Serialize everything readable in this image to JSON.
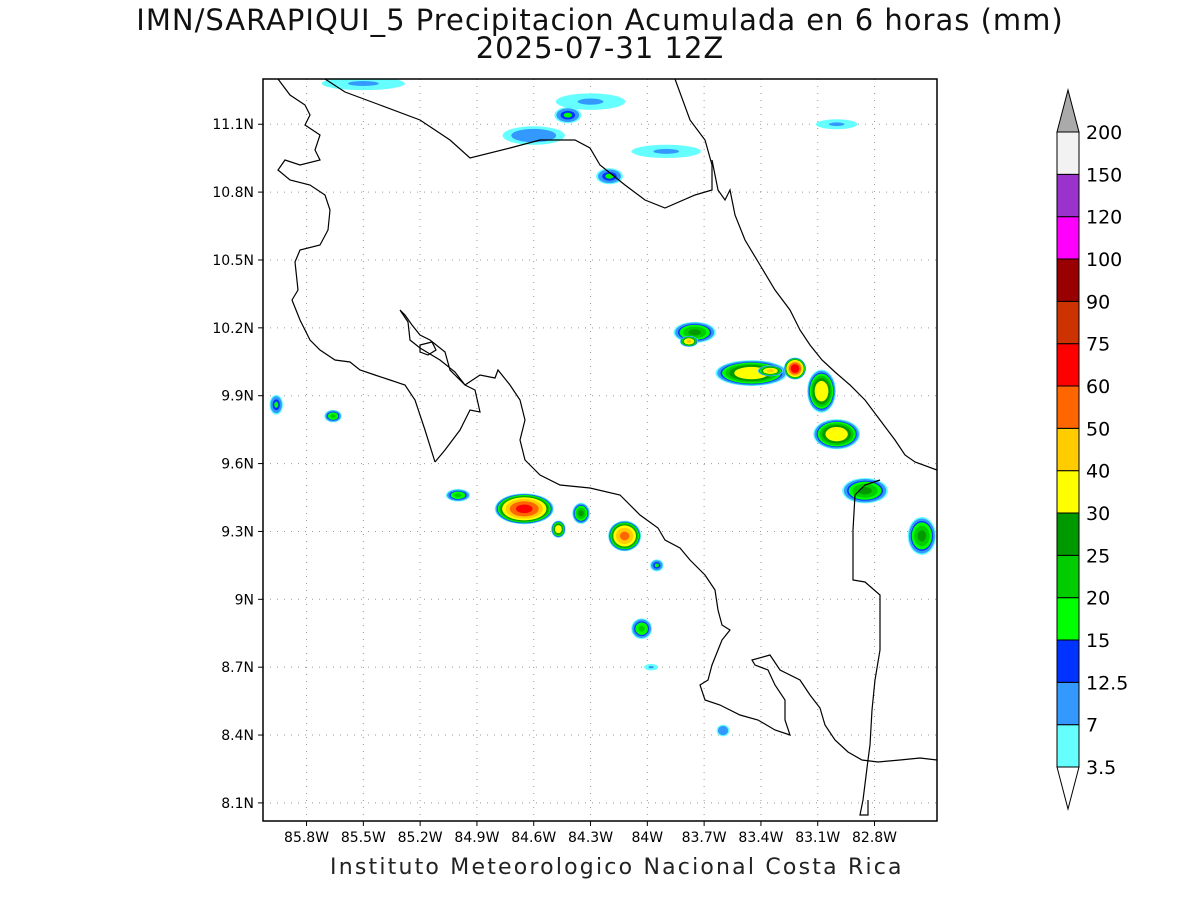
{
  "title": {
    "line1": "IMN/SARAPIQUI_5 Precipitacion Acumulada en 6 horas (mm)",
    "line2": "2025-07-31 12Z"
  },
  "footer": "Instituto Meteorologico Nacional Costa Rica",
  "map": {
    "lon_range": [
      -86.03,
      -82.47
    ],
    "lat_range": [
      8.02,
      11.3
    ],
    "lon_ticks": [
      {
        "value": -85.8,
        "label": "85.8W"
      },
      {
        "value": -85.5,
        "label": "85.5W"
      },
      {
        "value": -85.2,
        "label": "85.2W"
      },
      {
        "value": -84.9,
        "label": "84.9W"
      },
      {
        "value": -84.6,
        "label": "84.6W"
      },
      {
        "value": -84.3,
        "label": "84.3W"
      },
      {
        "value": -84.0,
        "label": "84W"
      },
      {
        "value": -83.7,
        "label": "83.7W"
      },
      {
        "value": -83.4,
        "label": "83.4W"
      },
      {
        "value": -83.1,
        "label": "83.1W"
      },
      {
        "value": -82.8,
        "label": "82.8W"
      }
    ],
    "lat_ticks": [
      {
        "value": 11.1,
        "label": "11.1N"
      },
      {
        "value": 10.8,
        "label": "10.8N"
      },
      {
        "value": 10.5,
        "label": "10.5N"
      },
      {
        "value": 10.2,
        "label": "10.2N"
      },
      {
        "value": 9.9,
        "label": "9.9N"
      },
      {
        "value": 9.6,
        "label": "9.6N"
      },
      {
        "value": 9.3,
        "label": "9.3N"
      },
      {
        "value": 9.0,
        "label": "9N"
      },
      {
        "value": 8.7,
        "label": "8.7N"
      },
      {
        "value": 8.4,
        "label": "8.4N"
      },
      {
        "value": 8.1,
        "label": "8.1N"
      }
    ],
    "grid": true
  },
  "colorbar": {
    "levels": [
      "3.5",
      "7",
      "12.5",
      "15",
      "20",
      "25",
      "30",
      "40",
      "50",
      "60",
      "75",
      "90",
      "100",
      "120",
      "150",
      "200"
    ],
    "colors": [
      "#66ffff",
      "#3399ff",
      "#0033ff",
      "#00ff00",
      "#00cc00",
      "#009900",
      "#ffff00",
      "#ffcc00",
      "#ff6600",
      "#ff0000",
      "#cc3300",
      "#990000",
      "#ff00ff",
      "#9933cc",
      "#f2f2f2"
    ],
    "over_color": "#aaaaaa",
    "under_color": "#ffffff"
  },
  "precip_cells": [
    {
      "lon": -83.75,
      "lat": 10.18,
      "rx": 0.12,
      "ry": 0.05,
      "max": 25
    },
    {
      "lon": -83.78,
      "lat": 10.14,
      "rx": 0.05,
      "ry": 0.025,
      "max": 40
    },
    {
      "lon": -83.45,
      "lat": 10.0,
      "rx": 0.2,
      "ry": 0.06,
      "max": 35
    },
    {
      "lon": -83.35,
      "lat": 10.01,
      "rx": 0.07,
      "ry": 0.025,
      "max": 40
    },
    {
      "lon": -83.22,
      "lat": 10.02,
      "rx": 0.06,
      "ry": 0.05,
      "max": 65
    },
    {
      "lon": -83.08,
      "lat": 9.92,
      "rx": 0.08,
      "ry": 0.1,
      "max": 35
    },
    {
      "lon": -83.0,
      "lat": 9.73,
      "rx": 0.13,
      "ry": 0.07,
      "max": 35
    },
    {
      "lon": -82.85,
      "lat": 9.48,
      "rx": 0.13,
      "ry": 0.06,
      "max": 25
    },
    {
      "lon": -82.55,
      "lat": 9.28,
      "rx": 0.08,
      "ry": 0.09,
      "max": 25
    },
    {
      "lon": -84.65,
      "lat": 9.4,
      "rx": 0.16,
      "ry": 0.07,
      "max": 60
    },
    {
      "lon": -84.12,
      "lat": 9.28,
      "rx": 0.09,
      "ry": 0.07,
      "max": 50
    },
    {
      "lon": -84.47,
      "lat": 9.31,
      "rx": 0.04,
      "ry": 0.04,
      "max": 35
    },
    {
      "lon": -84.03,
      "lat": 8.87,
      "rx": 0.06,
      "ry": 0.05,
      "max": 20
    },
    {
      "lon": -85.0,
      "lat": 9.46,
      "rx": 0.07,
      "ry": 0.03,
      "max": 20
    },
    {
      "lon": -84.35,
      "lat": 9.38,
      "rx": 0.05,
      "ry": 0.05,
      "max": 25
    },
    {
      "lon": -85.66,
      "lat": 9.81,
      "rx": 0.05,
      "ry": 0.03,
      "max": 20
    },
    {
      "lon": -85.96,
      "lat": 9.86,
      "rx": 0.04,
      "ry": 0.05,
      "max": 15
    },
    {
      "lon": -84.42,
      "lat": 11.14,
      "rx": 0.08,
      "ry": 0.04,
      "max": 15
    },
    {
      "lon": -84.2,
      "lat": 10.87,
      "rx": 0.08,
      "ry": 0.04,
      "max": 15
    },
    {
      "lon": -84.6,
      "lat": 11.05,
      "rx": 0.2,
      "ry": 0.05,
      "max": 10
    },
    {
      "lon": -84.3,
      "lat": 11.2,
      "rx": 0.25,
      "ry": 0.05,
      "max": 7
    },
    {
      "lon": -83.9,
      "lat": 10.98,
      "rx": 0.25,
      "ry": 0.04,
      "max": 7
    },
    {
      "lon": -83.6,
      "lat": 8.42,
      "rx": 0.04,
      "ry": 0.03,
      "max": 12
    },
    {
      "lon": -83.95,
      "lat": 9.15,
      "rx": 0.04,
      "ry": 0.03,
      "max": 15
    },
    {
      "lon": -83.98,
      "lat": 8.7,
      "rx": 0.05,
      "ry": 0.02,
      "max": 7
    },
    {
      "lon": -85.5,
      "lat": 11.28,
      "rx": 0.3,
      "ry": 0.04,
      "max": 7
    },
    {
      "lon": -83.0,
      "lat": 11.1,
      "rx": 0.15,
      "ry": 0.03,
      "max": 7
    }
  ]
}
